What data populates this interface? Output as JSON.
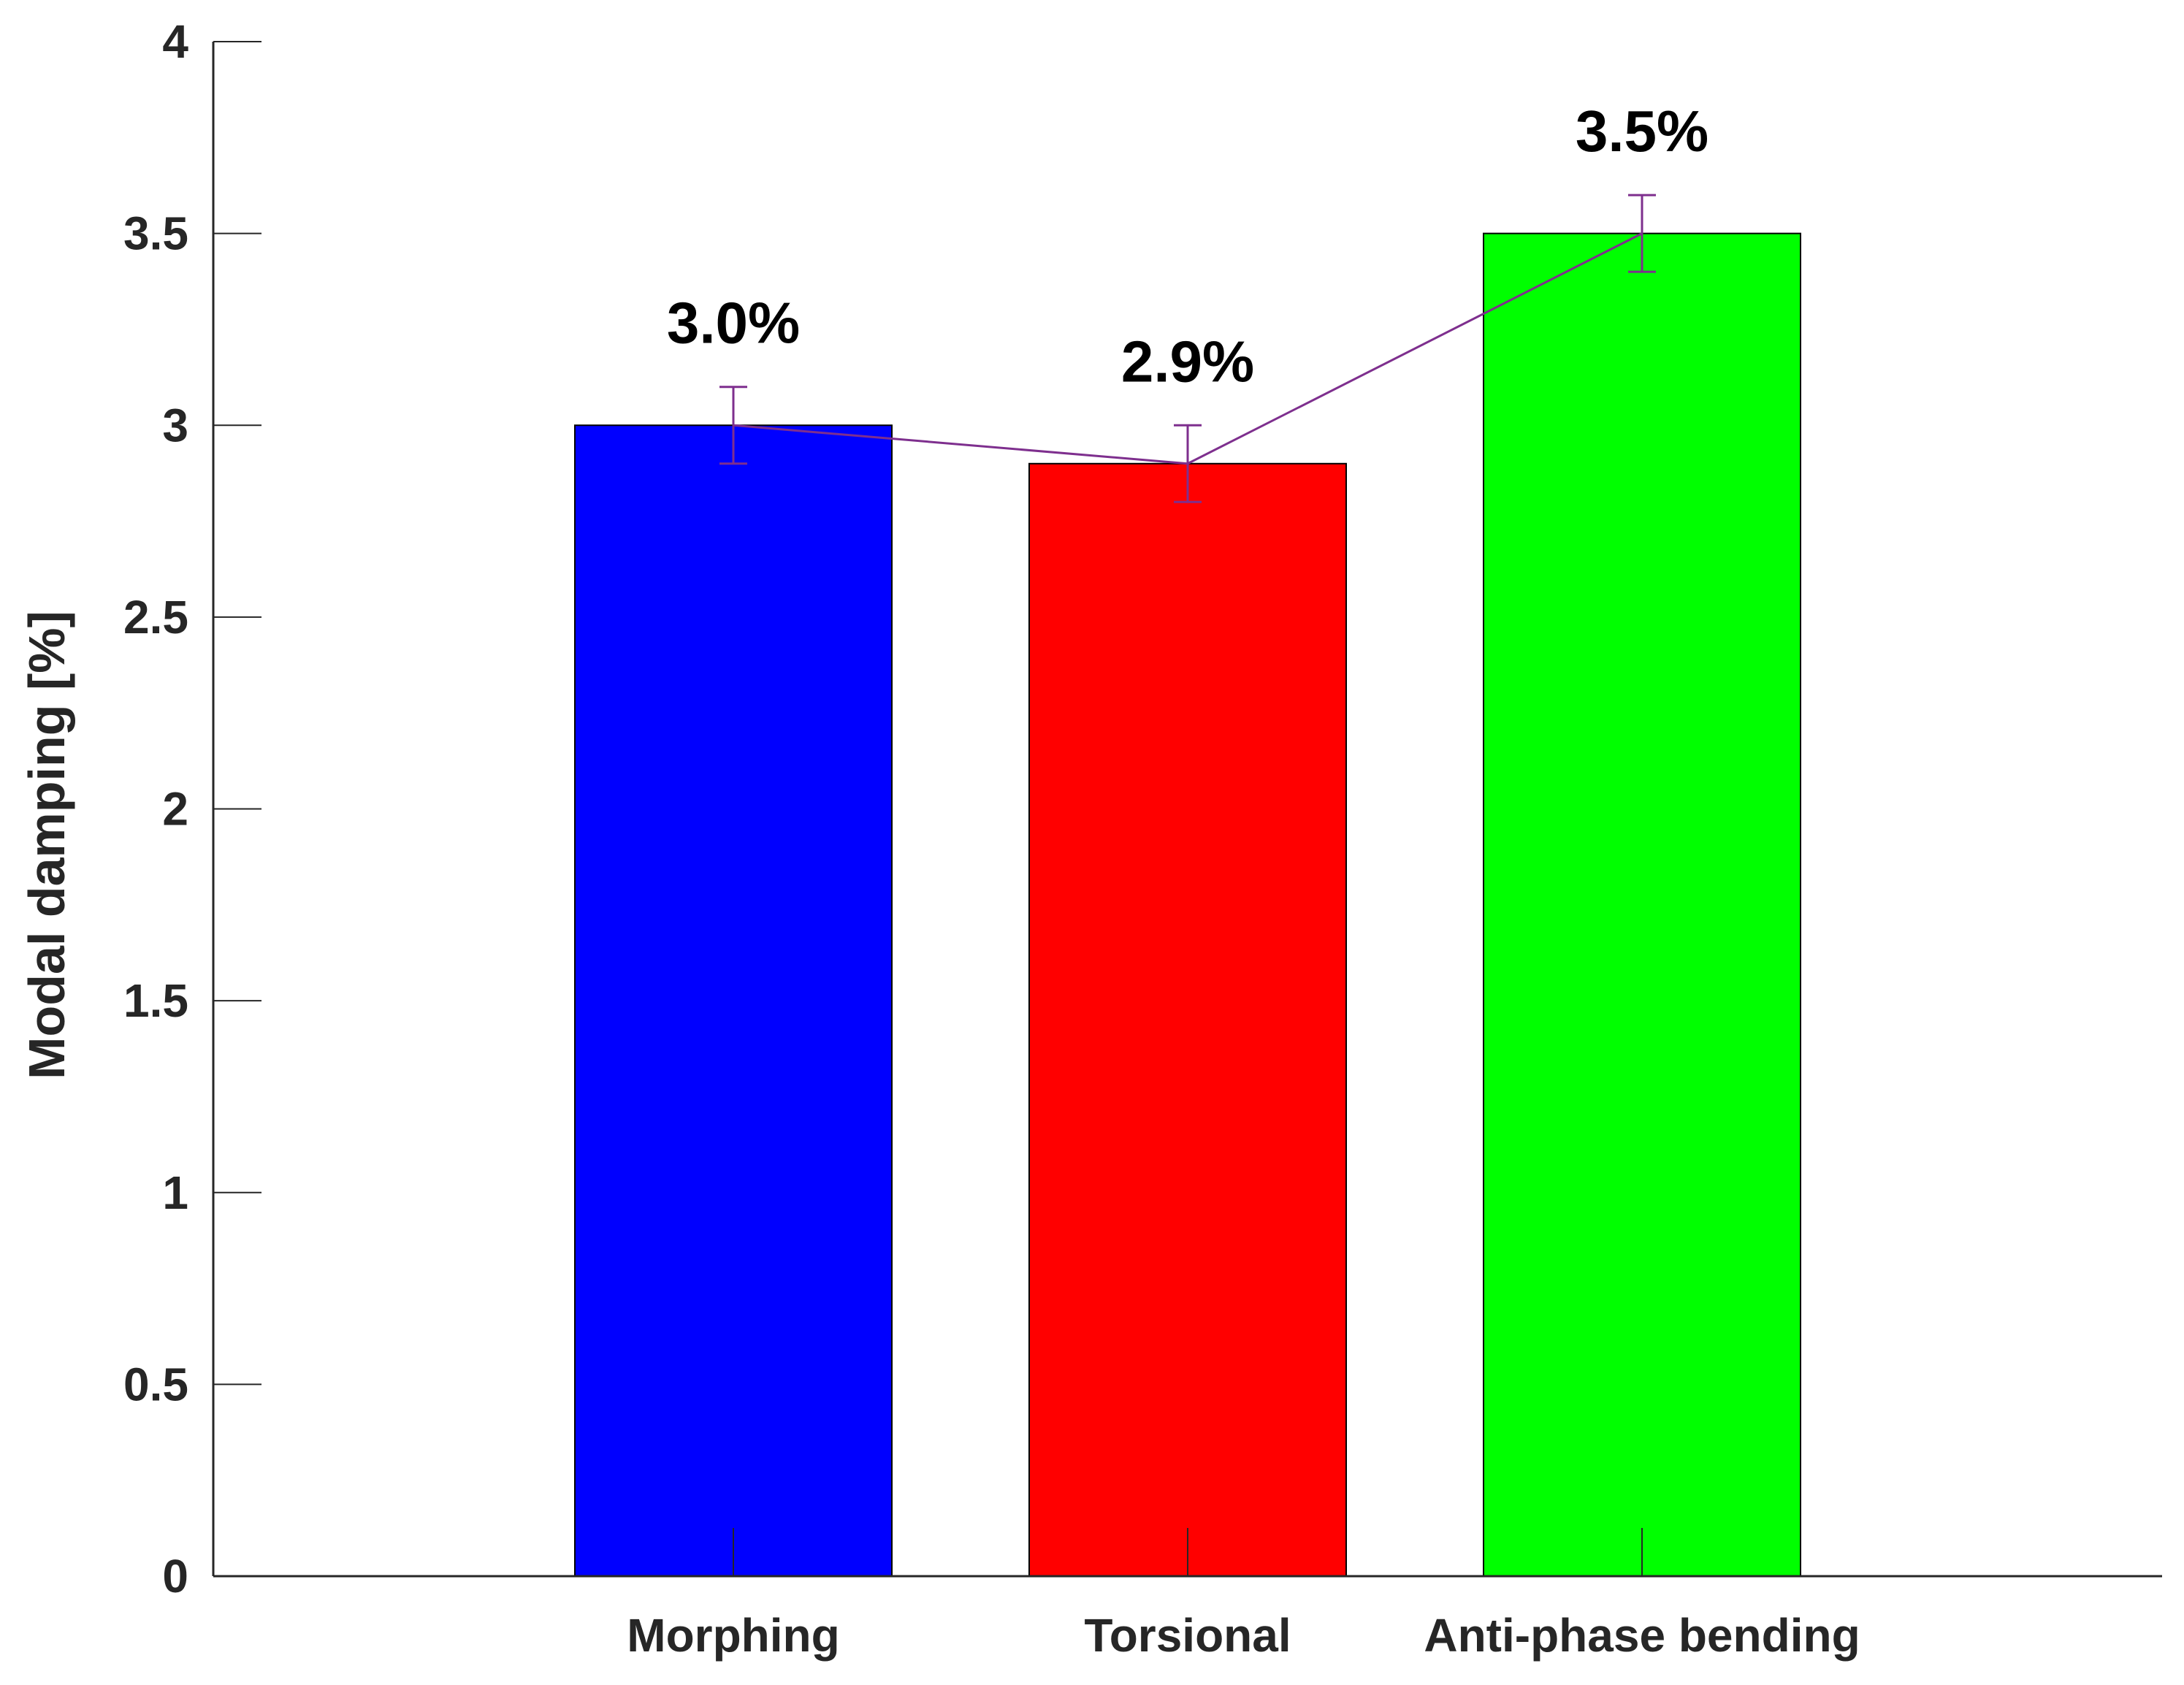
{
  "chart_data": {
    "type": "bar",
    "title": "",
    "xlabel": "",
    "ylabel": "Modal damping [%]",
    "ylim": [
      0,
      4
    ],
    "yticks": [
      0,
      0.5,
      1,
      1.5,
      2,
      2.5,
      3,
      3.5,
      4
    ],
    "ytick_labels": [
      "0",
      "0.5",
      "1",
      "1.5",
      "2",
      "2.5",
      "3",
      "3.5",
      "4"
    ],
    "grid": false,
    "categories": [
      "Morphing",
      "Torsional",
      "Anti-phase bending"
    ],
    "values": [
      3.0,
      2.9,
      3.5
    ],
    "errors": [
      0.1,
      0.1,
      0.1
    ],
    "data_labels": [
      "3.0%",
      "2.9%",
      "3.5%"
    ],
    "bar_colors": [
      "#0000ff",
      "#ff0000",
      "#00ff00"
    ],
    "trend_line_color": "#7e2f8e",
    "axis_color": "#262626"
  }
}
